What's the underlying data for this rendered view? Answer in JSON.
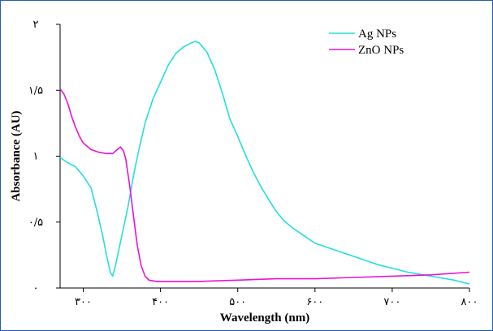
{
  "chart_data": {
    "type": "line",
    "xlabel": "Wavelength (nm)",
    "ylabel": "Absorbance (AU)",
    "xlim": [
      270,
      800
    ],
    "ylim": [
      0,
      2.0
    ],
    "x_ticks": [
      {
        "value": 300,
        "label": "۳۰۰"
      },
      {
        "value": 400,
        "label": "۴۰۰"
      },
      {
        "value": 500,
        "label": "۵۰۰"
      },
      {
        "value": 600,
        "label": "۶۰۰"
      },
      {
        "value": 700,
        "label": "۷۰۰"
      },
      {
        "value": 800,
        "label": "۸۰۰"
      }
    ],
    "y_ticks": [
      {
        "value": 0,
        "label": "۰"
      },
      {
        "value": 0.5,
        "label": "۰/۵"
      },
      {
        "value": 1.0,
        "label": "۱"
      },
      {
        "value": 1.5,
        "label": "۱/۵"
      },
      {
        "value": 2.0,
        "label": "۲"
      }
    ],
    "legend_position": "top-right",
    "grid": false,
    "series": [
      {
        "name": "Ag NPs",
        "color": "#22e0dc",
        "points": [
          [
            270,
            0.99
          ],
          [
            280,
            0.95
          ],
          [
            290,
            0.92
          ],
          [
            300,
            0.85
          ],
          [
            310,
            0.76
          ],
          [
            318,
            0.58
          ],
          [
            325,
            0.4
          ],
          [
            330,
            0.25
          ],
          [
            335,
            0.12
          ],
          [
            338,
            0.09
          ],
          [
            342,
            0.18
          ],
          [
            350,
            0.4
          ],
          [
            358,
            0.62
          ],
          [
            365,
            0.85
          ],
          [
            372,
            1.05
          ],
          [
            380,
            1.25
          ],
          [
            390,
            1.43
          ],
          [
            400,
            1.56
          ],
          [
            410,
            1.69
          ],
          [
            420,
            1.78
          ],
          [
            430,
            1.83
          ],
          [
            440,
            1.86
          ],
          [
            445,
            1.87
          ],
          [
            450,
            1.86
          ],
          [
            460,
            1.79
          ],
          [
            470,
            1.66
          ],
          [
            480,
            1.48
          ],
          [
            490,
            1.28
          ],
          [
            500,
            1.15
          ],
          [
            510,
            1.01
          ],
          [
            520,
            0.88
          ],
          [
            530,
            0.77
          ],
          [
            540,
            0.67
          ],
          [
            550,
            0.58
          ],
          [
            560,
            0.51
          ],
          [
            570,
            0.46
          ],
          [
            580,
            0.42
          ],
          [
            590,
            0.38
          ],
          [
            600,
            0.34
          ],
          [
            620,
            0.3
          ],
          [
            640,
            0.26
          ],
          [
            660,
            0.22
          ],
          [
            680,
            0.18
          ],
          [
            700,
            0.15
          ],
          [
            720,
            0.12
          ],
          [
            740,
            0.1
          ],
          [
            760,
            0.08
          ],
          [
            780,
            0.06
          ],
          [
            800,
            0.03
          ]
        ]
      },
      {
        "name": "ZnO NPs",
        "color": "#ea12d8",
        "points": [
          [
            270,
            1.51
          ],
          [
            275,
            1.47
          ],
          [
            280,
            1.4
          ],
          [
            285,
            1.3
          ],
          [
            290,
            1.22
          ],
          [
            295,
            1.15
          ],
          [
            300,
            1.1
          ],
          [
            310,
            1.05
          ],
          [
            320,
            1.03
          ],
          [
            330,
            1.02
          ],
          [
            338,
            1.02
          ],
          [
            342,
            1.04
          ],
          [
            348,
            1.07
          ],
          [
            352,
            1.04
          ],
          [
            355,
            0.98
          ],
          [
            360,
            0.78
          ],
          [
            365,
            0.55
          ],
          [
            370,
            0.32
          ],
          [
            375,
            0.17
          ],
          [
            380,
            0.09
          ],
          [
            385,
            0.06
          ],
          [
            395,
            0.05
          ],
          [
            420,
            0.05
          ],
          [
            450,
            0.05
          ],
          [
            500,
            0.06
          ],
          [
            550,
            0.07
          ],
          [
            600,
            0.07
          ],
          [
            650,
            0.08
          ],
          [
            700,
            0.09
          ],
          [
            750,
            0.1
          ],
          [
            800,
            0.12
          ]
        ]
      }
    ]
  }
}
